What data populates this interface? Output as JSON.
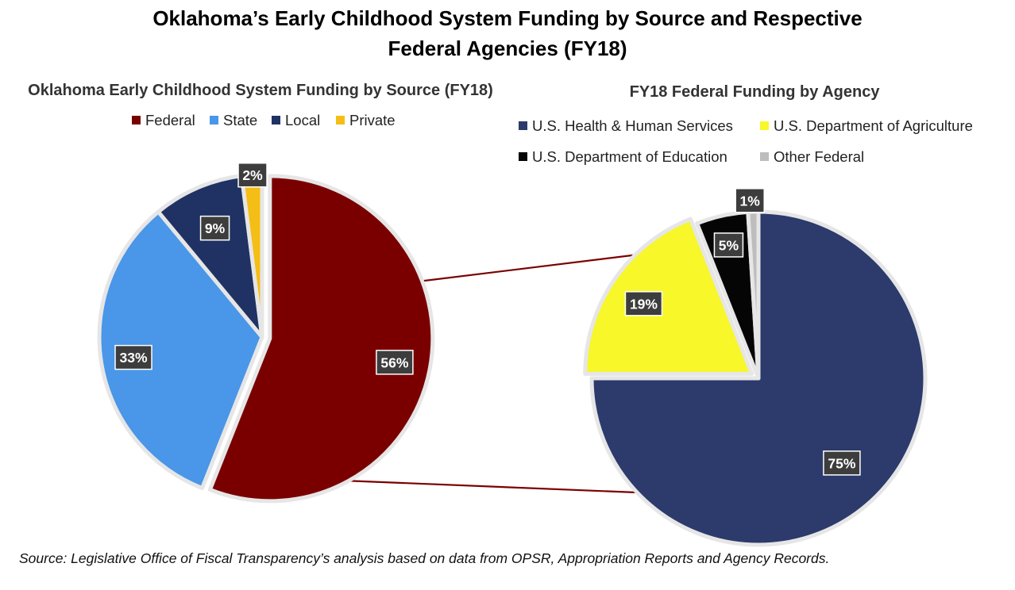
{
  "title": {
    "line1": "Oklahoma’s Early Childhood System Funding by Source and Respective",
    "line2": "Federal Agencies (FY18)"
  },
  "source_note": "Source: Legislative Office of Fiscal Transparency’s analysis based on data from OPSR, Appropriation Reports and Agency Records.",
  "chart_data": [
    {
      "type": "pie",
      "title": "Oklahoma Early Childhood System Funding by Source (FY18)",
      "legend_position": "top",
      "slices": [
        {
          "label": "Federal",
          "value": 56,
          "display": "56%",
          "color": "#7a0000"
        },
        {
          "label": "State",
          "value": 33,
          "display": "33%",
          "color": "#4a96e8"
        },
        {
          "label": "Local",
          "value": 9,
          "display": "9%",
          "color": "#1f3263"
        },
        {
          "label": "Private",
          "value": 2,
          "display": "2%",
          "color": "#f5be16"
        }
      ]
    },
    {
      "type": "pie",
      "title": "FY18 Federal Funding by Agency",
      "legend_position": "top",
      "slices": [
        {
          "label": "U.S. Health & Human Services",
          "value": 75,
          "display": "75%",
          "color": "#2c3a6c"
        },
        {
          "label": "U.S. Department of Agriculture",
          "value": 19,
          "display": "19%",
          "color": "#f7f72a"
        },
        {
          "label": "U.S. Department of Education",
          "value": 5,
          "display": "5%",
          "color": "#050505"
        },
        {
          "label": "Other Federal",
          "value": 1,
          "display": "1%",
          "color": "#bdbdbd"
        }
      ]
    }
  ]
}
